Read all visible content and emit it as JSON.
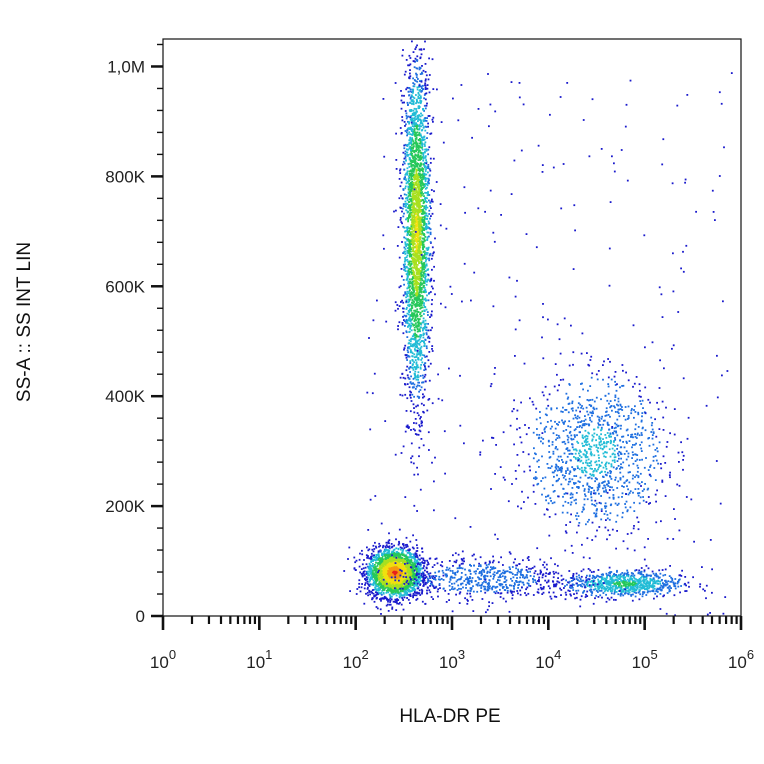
{
  "chart_data": {
    "type": "scatter",
    "style": "flow-cytometry-density-dot-plot",
    "xlabel": "HLA-DR PE",
    "ylabel": "SS-A :: SS INT LIN",
    "x_scale": "log",
    "x_range": [
      1,
      1000000
    ],
    "y_scale": "linear",
    "y_range": [
      0,
      1050000
    ],
    "x_ticks": [
      {
        "value": 1,
        "base": "10",
        "exp": "0"
      },
      {
        "value": 10,
        "base": "10",
        "exp": "1"
      },
      {
        "value": 100,
        "base": "10",
        "exp": "2"
      },
      {
        "value": 1000,
        "base": "10",
        "exp": "3"
      },
      {
        "value": 10000,
        "base": "10",
        "exp": "4"
      },
      {
        "value": 100000,
        "base": "10",
        "exp": "5"
      },
      {
        "value": 1000000,
        "base": "10",
        "exp": "6"
      }
    ],
    "y_ticks": [
      {
        "value": 0,
        "label": "0"
      },
      {
        "value": 200000,
        "label": "200K"
      },
      {
        "value": 400000,
        "label": "400K"
      },
      {
        "value": 600000,
        "label": "600K"
      },
      {
        "value": 800000,
        "label": "800K"
      },
      {
        "value": 1000000,
        "label": "1,0M"
      }
    ],
    "density_colors": [
      "#1a1acc",
      "#1e6fe0",
      "#22bcd6",
      "#26c85a",
      "#a8e020",
      "#f0e010",
      "#f59a10",
      "#e8201a"
    ],
    "grid": false,
    "legend": "none",
    "populations": [
      {
        "x_center": 250,
        "y_center": 80000,
        "x_log_spread": 0.14,
        "y_spread": 22000,
        "count": 2600,
        "peak_density": "red"
      },
      {
        "x_center": 420,
        "y_center": 700000,
        "x_log_spread": 0.07,
        "y_spread": 150000,
        "count": 2800,
        "peak_density": "yellow"
      },
      {
        "x_center": 30000,
        "y_center": 300000,
        "x_log_spread": 0.35,
        "y_spread": 70000,
        "count": 1100,
        "peak_density": "cyan"
      },
      {
        "x_center": 60000,
        "y_center": 60000,
        "x_log_spread": 0.3,
        "y_spread": 12000,
        "count": 800,
        "peak_density": "green"
      },
      {
        "x_center": 2000,
        "y_center": 70000,
        "x_log_spread": 0.45,
        "y_spread": 20000,
        "count": 600,
        "peak_density": "blue"
      }
    ]
  }
}
